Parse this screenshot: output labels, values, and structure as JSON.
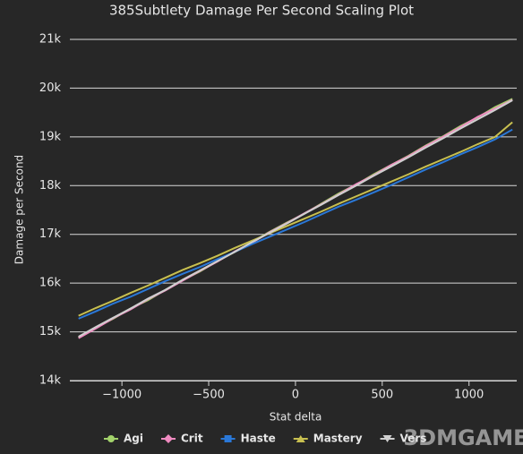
{
  "chart_data": {
    "type": "line",
    "title": "385Subtlety Damage Per Second Scaling Plot",
    "x_label": "Stat delta",
    "y_label": "Damage per Second",
    "watermark": "3DMGAME",
    "x": [
      -1250,
      -1150,
      -1050,
      -950,
      -850,
      -750,
      -650,
      -550,
      -450,
      -350,
      -250,
      -150,
      -50,
      50,
      150,
      250,
      350,
      450,
      550,
      650,
      750,
      850,
      950,
      1050,
      1150,
      1250
    ],
    "series": [
      {
        "name": "Agi",
        "color": "#a3d36b",
        "marker": "circle",
        "values": [
          14880,
          15090,
          15270,
          15480,
          15650,
          15860,
          16060,
          16240,
          16450,
          16640,
          16840,
          17050,
          17240,
          17420,
          17630,
          17840,
          18020,
          18230,
          18420,
          18610,
          18820,
          19010,
          19220,
          19400,
          19610,
          19780
        ]
      },
      {
        "name": "Crit",
        "color": "#f08bc1",
        "marker": "diamond",
        "values": [
          14870,
          15070,
          15280,
          15460,
          15670,
          15850,
          16050,
          16250,
          16440,
          16650,
          16830,
          17040,
          17230,
          17430,
          17620,
          17820,
          18030,
          18210,
          18420,
          18600,
          18810,
          19000,
          19200,
          19410,
          19580,
          19760
        ]
      },
      {
        "name": "Haste",
        "color": "#2a78d8",
        "marker": "square",
        "values": [
          15270,
          15420,
          15580,
          15720,
          15880,
          16040,
          16190,
          16330,
          16490,
          16640,
          16800,
          16950,
          17100,
          17250,
          17410,
          17570,
          17710,
          17860,
          18010,
          18170,
          18330,
          18480,
          18640,
          18790,
          18950,
          19150
        ]
      },
      {
        "name": "Mastery",
        "color": "#c8c050",
        "marker": "triangle",
        "values": [
          15330,
          15490,
          15640,
          15800,
          15950,
          16110,
          16270,
          16410,
          16560,
          16720,
          16870,
          17020,
          17170,
          17320,
          17470,
          17630,
          17780,
          17930,
          18080,
          18230,
          18390,
          18540,
          18690,
          18850,
          19000,
          19300
        ]
      },
      {
        "name": "Vers",
        "color": "#d0d0d0",
        "marker": "triangle-down",
        "values": [
          14900,
          15100,
          15290,
          15480,
          15680,
          15860,
          16070,
          16260,
          16450,
          16640,
          16840,
          17030,
          17220,
          17420,
          17610,
          17810,
          18000,
          18200,
          18390,
          18580,
          18780,
          18970,
          19170,
          19360,
          19550,
          19750
        ]
      }
    ],
    "xlim": [
      -1300,
      1275
    ],
    "xticks": [
      {
        "value": -1000,
        "label": "−1000"
      },
      {
        "value": -500,
        "label": "−500"
      },
      0,
      500,
      1000
    ],
    "ylim": [
      14000,
      21000
    ],
    "yticks": [
      {
        "value": 14000,
        "label": "14k"
      },
      {
        "value": 15000,
        "label": "15k"
      },
      {
        "value": 16000,
        "label": "16k"
      },
      {
        "value": 17000,
        "label": "17k"
      },
      {
        "value": 18000,
        "label": "18k"
      },
      {
        "value": 19000,
        "label": "19k"
      },
      {
        "value": 20000,
        "label": "20k"
      },
      {
        "value": 21000,
        "label": "21k"
      }
    ],
    "grid": true,
    "legend": "bottom"
  }
}
